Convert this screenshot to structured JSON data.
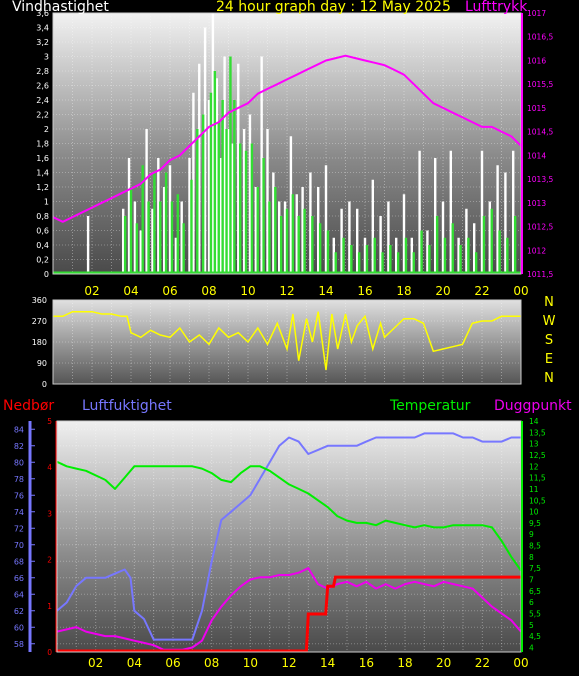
{
  "header": {
    "left_title": "Vindhastighet",
    "center_title": "24 hour graph day : 12 May 2025",
    "right_title": "Lufttrykk"
  },
  "x_ticks": [
    "02",
    "04",
    "06",
    "08",
    "10",
    "12",
    "14",
    "16",
    "18",
    "20",
    "22",
    "00"
  ],
  "compass": [
    "N",
    "W",
    "S",
    "E",
    "N"
  ],
  "bottom_titles": {
    "rain": "Nedbør",
    "humidity": "Luftfuktighet",
    "temperature": "Temperatur",
    "dewpoint": "Duggpunkt"
  },
  "colors": {
    "wind": "#ffffff",
    "gust": "#33dd33",
    "pressure": "#ff00ff",
    "direction": "#ffff00",
    "humidity": "#7777ff",
    "temperature": "#00ee00",
    "dewpoint": "#ee00ee",
    "rain": "#ff0000",
    "tick_text": "#ffff00"
  },
  "chart_data": [
    {
      "type": "bar",
      "title": "Vindhastighet",
      "y_ticks": [
        "0",
        "0,2",
        "0,4",
        "0,6",
        "0,8",
        "1",
        "1,2",
        "1,4",
        "1,6",
        "1,8",
        "2",
        "2,2",
        "2,4",
        "2,6",
        "2,8",
        "3",
        "3,2",
        "3,4",
        "3,6"
      ],
      "ylim": [
        0,
        3.6
      ],
      "xlim_hours": [
        0,
        24
      ],
      "series": [
        {
          "name": "Vindhastighet",
          "type": "bar",
          "x": [
            1.8,
            3.6,
            3.9,
            4.2,
            4.5,
            4.8,
            5.1,
            5.4,
            5.7,
            6.0,
            6.3,
            6.6,
            7.0,
            7.2,
            7.5,
            7.8,
            8.0,
            8.2,
            8.4,
            8.6,
            8.8,
            9.0,
            9.2,
            9.5,
            9.8,
            10.1,
            10.4,
            10.7,
            11.0,
            11.3,
            11.6,
            11.9,
            12.2,
            12.5,
            12.8,
            13.2,
            13.6,
            14.0,
            14.4,
            14.8,
            15.2,
            15.6,
            16.0,
            16.4,
            16.8,
            17.2,
            17.6,
            18.0,
            18.4,
            18.8,
            19.2,
            19.6,
            20.0,
            20.4,
            20.8,
            21.2,
            21.6,
            22.0,
            22.4,
            22.8,
            23.2,
            23.6
          ],
          "values": [
            0.8,
            0.9,
            1.6,
            1.0,
            0.6,
            2.0,
            0.9,
            1.6,
            1.2,
            1.5,
            0.5,
            1.0,
            1.6,
            2.5,
            2.9,
            3.4,
            2.4,
            3.6,
            2.7,
            1.6,
            3.0,
            2.0,
            1.8,
            2.9,
            2.0,
            2.2,
            1.2,
            3.0,
            2.0,
            1.4,
            1.0,
            1.0,
            1.9,
            1.1,
            1.2,
            1.4,
            1.2,
            1.5,
            0.5,
            0.9,
            1.0,
            0.9,
            0.5,
            1.3,
            0.8,
            1.0,
            0.5,
            1.1,
            0.5,
            1.7,
            0.6,
            1.6,
            1.0,
            1.7,
            0.5,
            0.9,
            0.7,
            1.7,
            1.0,
            1.5,
            1.4,
            1.7
          ]
        },
        {
          "name": "Vindkast",
          "type": "bar",
          "x": [
            3.7,
            4.0,
            4.3,
            4.6,
            4.9,
            5.2,
            5.5,
            5.8,
            6.1,
            6.4,
            6.7,
            7.1,
            7.4,
            7.7,
            8.1,
            8.3,
            8.5,
            8.7,
            8.9,
            9.1,
            9.3,
            9.6,
            9.9,
            10.2,
            10.5,
            10.8,
            11.1,
            11.4,
            11.7,
            12.0,
            12.3,
            12.6,
            12.9,
            13.3,
            13.7,
            14.1,
            14.5,
            14.9,
            15.3,
            15.7,
            16.1,
            16.5,
            16.9,
            17.3,
            17.7,
            18.1,
            18.5,
            18.9,
            19.3,
            19.7,
            20.1,
            20.5,
            20.9,
            21.3,
            21.7,
            22.1,
            22.5,
            22.9,
            23.3,
            23.7
          ],
          "values": [
            0.8,
            1.2,
            0.7,
            1.5,
            1.0,
            1.4,
            1.0,
            1.4,
            1.0,
            1.1,
            0.7,
            1.3,
            2.0,
            2.2,
            2.5,
            2.8,
            2.1,
            2.4,
            2.0,
            3.0,
            2.4,
            1.8,
            1.7,
            1.8,
            1.2,
            1.6,
            1.0,
            1.2,
            0.8,
            0.9,
            1.1,
            0.8,
            0.9,
            0.8,
            0.7,
            0.6,
            0.3,
            0.5,
            0.4,
            0.3,
            0.4,
            0.5,
            0.3,
            0.4,
            0.3,
            0.5,
            0.3,
            0.6,
            0.4,
            0.8,
            0.5,
            0.7,
            0.4,
            0.5,
            0.3,
            0.8,
            0.9,
            0.6,
            0.5,
            0.8
          ]
        }
      ],
      "pressure": {
        "name": "Lufttrykk",
        "y_ticks": [
          "1011,5",
          "1012",
          "1012,5",
          "1013",
          "1013,5",
          "1014",
          "1014,5",
          "1015",
          "1015,5",
          "1016",
          "1016,5",
          "1017"
        ],
        "ylim": [
          1011.5,
          1017
        ],
        "x": [
          0,
          0.5,
          1,
          1.5,
          2,
          2.5,
          3,
          3.5,
          4,
          4.5,
          5,
          5.5,
          6,
          6.5,
          7,
          7.5,
          8,
          8.5,
          9,
          9.5,
          10,
          10.5,
          11,
          11.5,
          12,
          12.5,
          13,
          13.5,
          14,
          14.5,
          15,
          15.5,
          16,
          16.5,
          17,
          17.5,
          18,
          18.5,
          19,
          19.5,
          20,
          20.5,
          21,
          21.5,
          22,
          22.5,
          23,
          23.5,
          24
        ],
        "values": [
          1012.7,
          1012.6,
          1012.7,
          1012.8,
          1012.9,
          1013.0,
          1013.1,
          1013.2,
          1013.3,
          1013.4,
          1013.6,
          1013.7,
          1013.9,
          1014.0,
          1014.2,
          1014.4,
          1014.6,
          1014.7,
          1014.9,
          1015.0,
          1015.1,
          1015.3,
          1015.4,
          1015.5,
          1015.6,
          1015.7,
          1015.8,
          1015.9,
          1016.0,
          1016.05,
          1016.1,
          1016.05,
          1016.0,
          1015.95,
          1015.9,
          1015.8,
          1015.7,
          1015.5,
          1015.3,
          1015.1,
          1015.0,
          1014.9,
          1014.8,
          1014.7,
          1014.6,
          1014.6,
          1014.5,
          1014.4,
          1014.2
        ]
      }
    },
    {
      "type": "line",
      "title": "",
      "y_ticks": [
        "0",
        "90",
        "180",
        "270",
        "360"
      ],
      "ylim": [
        0,
        360
      ],
      "x": [
        0,
        0.5,
        1,
        1.5,
        2,
        2.5,
        3,
        3.5,
        3.8,
        4,
        4.5,
        5,
        5.5,
        6,
        6.5,
        7,
        7.5,
        8,
        8.5,
        9,
        9.5,
        10,
        10.5,
        11,
        11.5,
        12,
        12.3,
        12.6,
        13,
        13.3,
        13.6,
        14,
        14.3,
        14.6,
        15,
        15.3,
        15.6,
        16,
        16.4,
        16.8,
        17,
        17.5,
        18,
        18.5,
        19,
        19.5,
        20,
        20.5,
        21,
        21.5,
        22,
        22.5,
        23,
        23.5,
        24
      ],
      "values": [
        290,
        290,
        310,
        310,
        310,
        300,
        300,
        290,
        290,
        220,
        200,
        230,
        210,
        200,
        240,
        180,
        210,
        170,
        240,
        200,
        220,
        180,
        240,
        170,
        260,
        150,
        300,
        100,
        280,
        180,
        310,
        60,
        300,
        150,
        300,
        180,
        250,
        290,
        150,
        260,
        200,
        240,
        280,
        280,
        260,
        140,
        150,
        160,
        170,
        260,
        270,
        270,
        290,
        290,
        290
      ]
    },
    {
      "type": "line",
      "title": "",
      "xlim_hours": [
        0,
        24
      ],
      "humidity_axis": {
        "y_ticks": [
          "58",
          "60",
          "62",
          "64",
          "66",
          "68",
          "70",
          "72",
          "74",
          "76",
          "78",
          "80",
          "82",
          "84"
        ],
        "ylim": [
          57,
          85
        ]
      },
      "temperature_axis": {
        "y_ticks": [
          "4",
          "4,5",
          "5",
          "5,5",
          "6",
          "6,5",
          "7",
          "7,5",
          "8",
          "8,5",
          "9",
          "9,5",
          "10",
          "10,5",
          "11",
          "11,5",
          "12",
          "12,5",
          "13",
          "13,5",
          "14"
        ],
        "ylim": [
          3.8,
          14
        ]
      },
      "rain_axis": {
        "y_ticks": [
          "0",
          "1",
          "2",
          "3",
          "4",
          "5"
        ],
        "ylim": [
          0,
          5
        ]
      },
      "series": [
        {
          "name": "Luftfuktighet",
          "axis": "humidity",
          "x": [
            0,
            0.5,
            1,
            1.5,
            2,
            2.5,
            3,
            3.5,
            3.8,
            4,
            4.5,
            5,
            5.5,
            6,
            6.5,
            7,
            7.5,
            8,
            8.5,
            9,
            9.5,
            10,
            10.5,
            11,
            11.5,
            12,
            12.5,
            13,
            13.5,
            14,
            14.5,
            15,
            15.5,
            16,
            16.5,
            17,
            17.5,
            18,
            18.5,
            19,
            19.5,
            20,
            20.5,
            21,
            21.5,
            22,
            22.5,
            23,
            23.5,
            24
          ],
          "values": [
            62,
            63,
            65,
            66,
            66,
            66,
            66.5,
            67,
            66,
            62,
            61,
            58.5,
            58.5,
            58.5,
            58.5,
            58.5,
            62,
            68,
            73,
            74,
            75,
            76,
            78,
            80,
            82,
            83,
            82.5,
            81,
            81.5,
            82,
            82,
            82,
            82,
            82.5,
            83,
            83,
            83,
            83,
            83,
            83.5,
            83.5,
            83.5,
            83.5,
            83,
            83,
            82.5,
            82.5,
            82.5,
            83,
            83
          ]
        },
        {
          "name": "Temperatur",
          "axis": "temperature",
          "x": [
            0,
            0.5,
            1,
            1.5,
            2,
            2.5,
            3,
            3.5,
            4,
            4.5,
            5,
            5.5,
            6,
            6.5,
            7,
            7.5,
            8,
            8.5,
            9,
            9.5,
            10,
            10.5,
            11,
            11.5,
            12,
            12.5,
            13,
            13.5,
            14,
            14.5,
            15,
            15.5,
            16,
            16.5,
            17,
            17.5,
            18,
            18.5,
            19,
            19.5,
            20,
            20.5,
            21,
            21.5,
            22,
            22.5,
            23,
            23.5,
            24
          ],
          "values": [
            12.2,
            12.0,
            11.9,
            11.8,
            11.6,
            11.4,
            11.0,
            11.5,
            12.0,
            12.0,
            12.0,
            12.0,
            12.0,
            12.0,
            12.0,
            11.9,
            11.7,
            11.4,
            11.3,
            11.7,
            12.0,
            12.0,
            11.8,
            11.5,
            11.2,
            11.0,
            10.8,
            10.5,
            10.2,
            9.8,
            9.6,
            9.5,
            9.5,
            9.4,
            9.6,
            9.5,
            9.4,
            9.3,
            9.4,
            9.3,
            9.3,
            9.4,
            9.4,
            9.4,
            9.4,
            9.3,
            8.7,
            8.0,
            7.4
          ]
        },
        {
          "name": "Duggpunkt",
          "axis": "temperature",
          "x": [
            0,
            0.5,
            1,
            1.5,
            2,
            2.5,
            3,
            3.5,
            4,
            4.5,
            5,
            5.5,
            6,
            6.5,
            7,
            7.5,
            8,
            8.5,
            9,
            9.5,
            10,
            10.5,
            11,
            11.5,
            12,
            12.5,
            13,
            13.5,
            14,
            14.5,
            15,
            15.5,
            16,
            16.5,
            17,
            17.5,
            18,
            18.5,
            19,
            19.5,
            20,
            20.5,
            21,
            21.5,
            22,
            22.5,
            23,
            23.5,
            24
          ],
          "values": [
            4.7,
            4.8,
            4.9,
            4.7,
            4.6,
            4.5,
            4.5,
            4.4,
            4.3,
            4.2,
            4.1,
            3.9,
            3.9,
            3.9,
            4.0,
            4.3,
            5.2,
            5.8,
            6.3,
            6.7,
            7.0,
            7.1,
            7.1,
            7.2,
            7.2,
            7.3,
            7.5,
            6.8,
            6.6,
            6.8,
            6.9,
            6.7,
            6.9,
            6.6,
            6.8,
            6.6,
            6.8,
            6.9,
            6.8,
            6.7,
            6.9,
            6.8,
            6.7,
            6.6,
            6.2,
            5.8,
            5.5,
            5.2,
            4.7
          ]
        },
        {
          "name": "Nedbør",
          "axis": "rain",
          "x": [
            0,
            12.9,
            13.0,
            13.9,
            14.0,
            14.3,
            14.4,
            24
          ],
          "values": [
            0,
            0,
            0.8,
            0.8,
            1.4,
            1.4,
            1.6,
            1.6
          ]
        }
      ]
    }
  ]
}
